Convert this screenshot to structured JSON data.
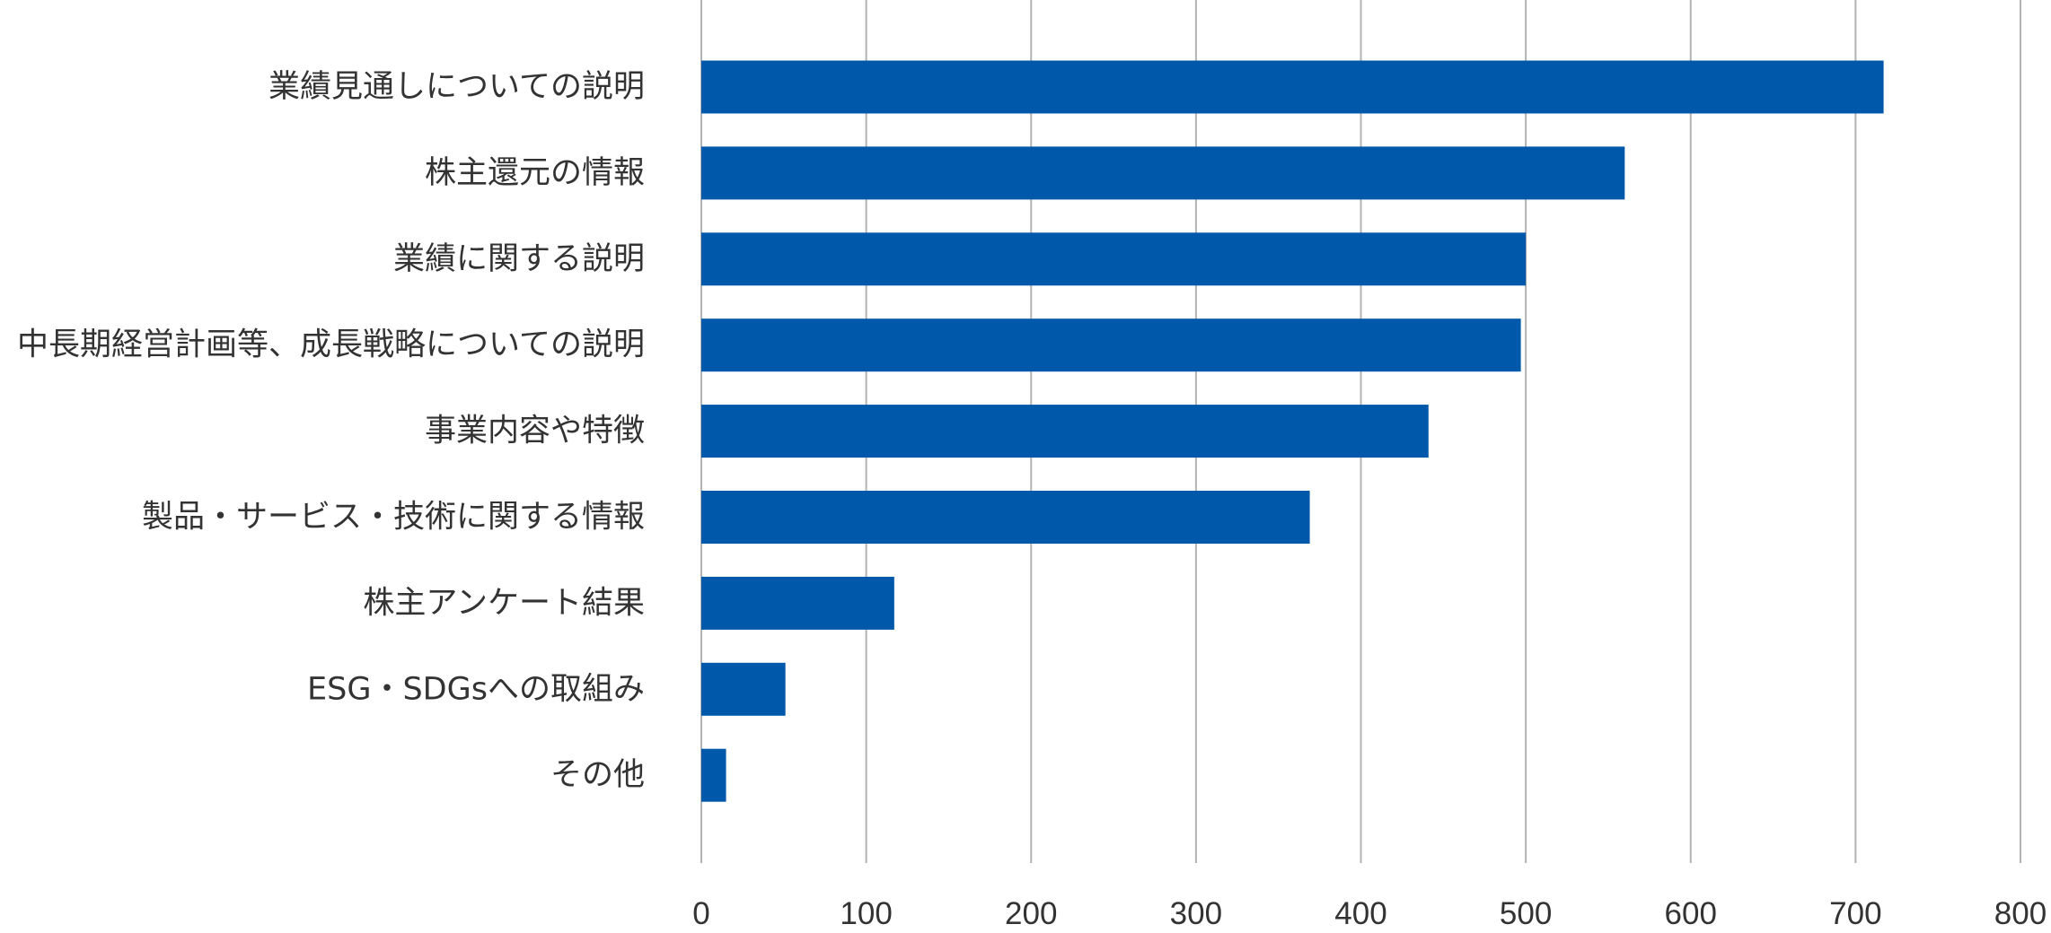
{
  "chart_data": {
    "type": "bar",
    "orientation": "horizontal",
    "title": "",
    "xlabel": "",
    "ylabel": "",
    "xlim": [
      0,
      800
    ],
    "x_ticks": [
      0,
      100,
      200,
      300,
      400,
      500,
      600,
      700,
      800
    ],
    "grid": true,
    "legend": "none",
    "bar_color": "#0058AB",
    "categories": [
      "業績見通しについての説明",
      "株主還元の情報",
      "業績に関する説明",
      "中長期経営計画等、成長戦略についての説明",
      "事業内容や特徴",
      "製品・サービス・技術に関する情報",
      "株主アンケート結果",
      "ESG・SDGsへの取組み",
      "その他"
    ],
    "values": [
      717,
      560,
      500,
      497,
      441,
      369,
      117,
      51,
      15
    ]
  }
}
